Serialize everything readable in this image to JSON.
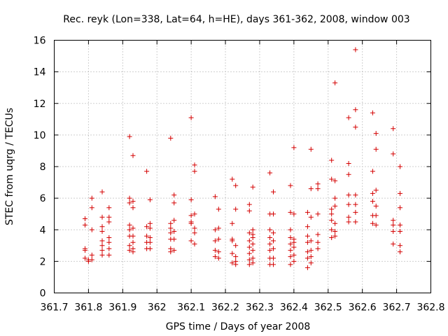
{
  "chart_data": {
    "type": "scatter",
    "title": "Rec. reyk (Lon=338, Lat=64, h=HE), days 361-362, 2008, window 003",
    "xlabel": "GPS time / Days of year 2008",
    "ylabel": "STEC from uqrg / TECUs",
    "xlim": [
      361.7,
      362.8
    ],
    "ylim": [
      0,
      16
    ],
    "xticks": [
      "361.7",
      "361.8",
      "361.9",
      "362",
      "362.1",
      "362.2",
      "362.3",
      "362.4",
      "362.5",
      "362.6",
      "362.7",
      "362.8"
    ],
    "yticks": [
      "0",
      "2",
      "4",
      "6",
      "8",
      "10",
      "12",
      "14",
      "16"
    ],
    "grid": true,
    "marker": "+",
    "color": "#d40000",
    "series": [
      {
        "points": [
          [
            361.79,
            4.7
          ],
          [
            361.79,
            4.3
          ],
          [
            361.79,
            2.8
          ],
          [
            361.79,
            2.7
          ],
          [
            361.79,
            2.2
          ],
          [
            361.8,
            2.1
          ],
          [
            361.8,
            2.0
          ],
          [
            361.81,
            6.0
          ],
          [
            361.81,
            5.4
          ],
          [
            361.81,
            4.0
          ],
          [
            361.81,
            2.4
          ],
          [
            361.81,
            2.1
          ],
          [
            361.84,
            6.4
          ],
          [
            361.84,
            4.8
          ],
          [
            361.84,
            4.2
          ],
          [
            361.84,
            3.9
          ],
          [
            361.84,
            3.3
          ],
          [
            361.84,
            3.0
          ],
          [
            361.84,
            2.7
          ],
          [
            361.84,
            2.4
          ],
          [
            361.86,
            5.4
          ],
          [
            361.86,
            4.8
          ],
          [
            361.86,
            4.5
          ],
          [
            361.86,
            3.5
          ],
          [
            361.86,
            3.2
          ],
          [
            361.86,
            2.8
          ],
          [
            361.86,
            2.4
          ],
          [
            361.92,
            9.9
          ],
          [
            361.92,
            6.0
          ],
          [
            361.92,
            5.7
          ],
          [
            361.92,
            4.3
          ],
          [
            361.92,
            4.0
          ],
          [
            361.92,
            3.6
          ],
          [
            361.92,
            3.0
          ],
          [
            361.92,
            2.7
          ],
          [
            361.93,
            8.7
          ],
          [
            361.93,
            5.8
          ],
          [
            361.93,
            5.4
          ],
          [
            361.93,
            4.1
          ],
          [
            361.93,
            3.6
          ],
          [
            361.93,
            3.2
          ],
          [
            361.93,
            2.8
          ],
          [
            361.93,
            2.6
          ],
          [
            361.97,
            7.7
          ],
          [
            361.97,
            4.2
          ],
          [
            361.97,
            3.6
          ],
          [
            361.97,
            3.2
          ],
          [
            361.97,
            2.8
          ],
          [
            361.98,
            5.9
          ],
          [
            361.98,
            4.4
          ],
          [
            361.98,
            4.1
          ],
          [
            361.98,
            3.5
          ],
          [
            361.98,
            3.2
          ],
          [
            361.98,
            2.8
          ],
          [
            362.04,
            9.8
          ],
          [
            362.04,
            4.4
          ],
          [
            362.04,
            4.1
          ],
          [
            362.04,
            3.8
          ],
          [
            362.04,
            3.4
          ],
          [
            362.04,
            2.8
          ],
          [
            362.04,
            2.6
          ],
          [
            362.05,
            6.2
          ],
          [
            362.05,
            5.7
          ],
          [
            362.05,
            4.6
          ],
          [
            362.05,
            3.9
          ],
          [
            362.05,
            3.4
          ],
          [
            362.05,
            2.7
          ],
          [
            362.1,
            11.1
          ],
          [
            362.1,
            5.9
          ],
          [
            362.1,
            4.9
          ],
          [
            362.1,
            4.5
          ],
          [
            362.1,
            4.4
          ],
          [
            362.1,
            3.3
          ],
          [
            362.11,
            8.1
          ],
          [
            362.11,
            7.7
          ],
          [
            362.11,
            5.0
          ],
          [
            362.11,
            4.1
          ],
          [
            362.11,
            3.8
          ],
          [
            362.11,
            3.1
          ],
          [
            362.17,
            6.1
          ],
          [
            362.17,
            4.0
          ],
          [
            362.17,
            3.3
          ],
          [
            362.17,
            2.7
          ],
          [
            362.17,
            2.3
          ],
          [
            362.18,
            5.3
          ],
          [
            362.18,
            4.1
          ],
          [
            362.18,
            3.4
          ],
          [
            362.18,
            2.6
          ],
          [
            362.18,
            2.2
          ],
          [
            362.22,
            7.2
          ],
          [
            362.22,
            4.4
          ],
          [
            362.22,
            3.4
          ],
          [
            362.22,
            3.3
          ],
          [
            362.22,
            2.5
          ],
          [
            362.22,
            1.9
          ],
          [
            362.23,
            6.8
          ],
          [
            362.23,
            5.3
          ],
          [
            362.23,
            3.0
          ],
          [
            362.23,
            2.3
          ],
          [
            362.23,
            2.0
          ],
          [
            362.23,
            1.8
          ],
          [
            362.27,
            5.6
          ],
          [
            362.27,
            5.2
          ],
          [
            362.27,
            3.8
          ],
          [
            362.27,
            3.3
          ],
          [
            362.27,
            2.9
          ],
          [
            362.27,
            2.5
          ],
          [
            362.27,
            2.1
          ],
          [
            362.27,
            1.8
          ],
          [
            362.28,
            6.7
          ],
          [
            362.28,
            4.0
          ],
          [
            362.28,
            3.7
          ],
          [
            362.28,
            3.5
          ],
          [
            362.28,
            3.1
          ],
          [
            362.28,
            2.7
          ],
          [
            362.28,
            2.2
          ],
          [
            362.28,
            1.9
          ],
          [
            362.33,
            7.6
          ],
          [
            362.33,
            5.0
          ],
          [
            362.33,
            4.0
          ],
          [
            362.33,
            3.5
          ],
          [
            362.33,
            3.1
          ],
          [
            362.33,
            2.7
          ],
          [
            362.33,
            2.2
          ],
          [
            362.33,
            1.8
          ],
          [
            362.34,
            6.4
          ],
          [
            362.34,
            5.0
          ],
          [
            362.34,
            3.8
          ],
          [
            362.34,
            3.3
          ],
          [
            362.34,
            2.8
          ],
          [
            362.34,
            2.2
          ],
          [
            362.34,
            1.8
          ],
          [
            362.39,
            6.8
          ],
          [
            362.39,
            5.1
          ],
          [
            362.39,
            4.0
          ],
          [
            362.39,
            3.5
          ],
          [
            362.39,
            3.1
          ],
          [
            362.39,
            2.7
          ],
          [
            362.39,
            2.3
          ],
          [
            362.39,
            1.8
          ],
          [
            362.4,
            9.2
          ],
          [
            362.4,
            5.0
          ],
          [
            362.4,
            3.4
          ],
          [
            362.4,
            3.2
          ],
          [
            362.4,
            2.9
          ],
          [
            362.4,
            2.4
          ],
          [
            362.4,
            2.0
          ],
          [
            362.44,
            5.1
          ],
          [
            362.44,
            4.2
          ],
          [
            362.44,
            3.6
          ],
          [
            362.44,
            3.2
          ],
          [
            362.44,
            2.6
          ],
          [
            362.44,
            2.2
          ],
          [
            362.44,
            1.6
          ],
          [
            362.45,
            9.1
          ],
          [
            362.45,
            6.6
          ],
          [
            362.45,
            4.8
          ],
          [
            362.45,
            3.3
          ],
          [
            362.45,
            2.7
          ],
          [
            362.45,
            2.3
          ],
          [
            362.45,
            1.9
          ],
          [
            362.47,
            6.9
          ],
          [
            362.47,
            6.6
          ],
          [
            362.47,
            5.0
          ],
          [
            362.47,
            3.7
          ],
          [
            362.47,
            3.2
          ],
          [
            362.47,
            2.8
          ],
          [
            362.51,
            8.4
          ],
          [
            362.51,
            7.2
          ],
          [
            362.51,
            5.3
          ],
          [
            362.51,
            5.0
          ],
          [
            362.51,
            4.6
          ],
          [
            362.51,
            4.0
          ],
          [
            362.51,
            3.5
          ],
          [
            362.52,
            13.3
          ],
          [
            362.52,
            7.1
          ],
          [
            362.52,
            6.0
          ],
          [
            362.52,
            5.5
          ],
          [
            362.52,
            4.4
          ],
          [
            362.52,
            3.9
          ],
          [
            362.52,
            3.6
          ],
          [
            362.56,
            11.1
          ],
          [
            362.56,
            8.2
          ],
          [
            362.56,
            7.5
          ],
          [
            362.56,
            6.2
          ],
          [
            362.56,
            5.6
          ],
          [
            362.56,
            4.8
          ],
          [
            362.56,
            4.5
          ],
          [
            362.58,
            15.4
          ],
          [
            362.58,
            11.6
          ],
          [
            362.58,
            10.5
          ],
          [
            362.58,
            6.2
          ],
          [
            362.58,
            5.6
          ],
          [
            362.58,
            5.1
          ],
          [
            362.58,
            4.5
          ],
          [
            362.63,
            11.4
          ],
          [
            362.63,
            7.7
          ],
          [
            362.63,
            6.3
          ],
          [
            362.63,
            5.8
          ],
          [
            362.63,
            4.9
          ],
          [
            362.63,
            4.4
          ],
          [
            362.64,
            10.1
          ],
          [
            362.64,
            9.1
          ],
          [
            362.64,
            6.5
          ],
          [
            362.64,
            5.5
          ],
          [
            362.64,
            4.9
          ],
          [
            362.64,
            4.3
          ],
          [
            362.69,
            10.4
          ],
          [
            362.69,
            8.8
          ],
          [
            362.69,
            4.6
          ],
          [
            362.69,
            4.3
          ],
          [
            362.69,
            3.9
          ],
          [
            362.69,
            3.1
          ],
          [
            362.71,
            8.0
          ],
          [
            362.71,
            6.3
          ],
          [
            362.71,
            5.4
          ],
          [
            362.71,
            4.3
          ],
          [
            362.71,
            3.9
          ],
          [
            362.71,
            3.0
          ],
          [
            362.71,
            2.6
          ]
        ]
      }
    ]
  }
}
